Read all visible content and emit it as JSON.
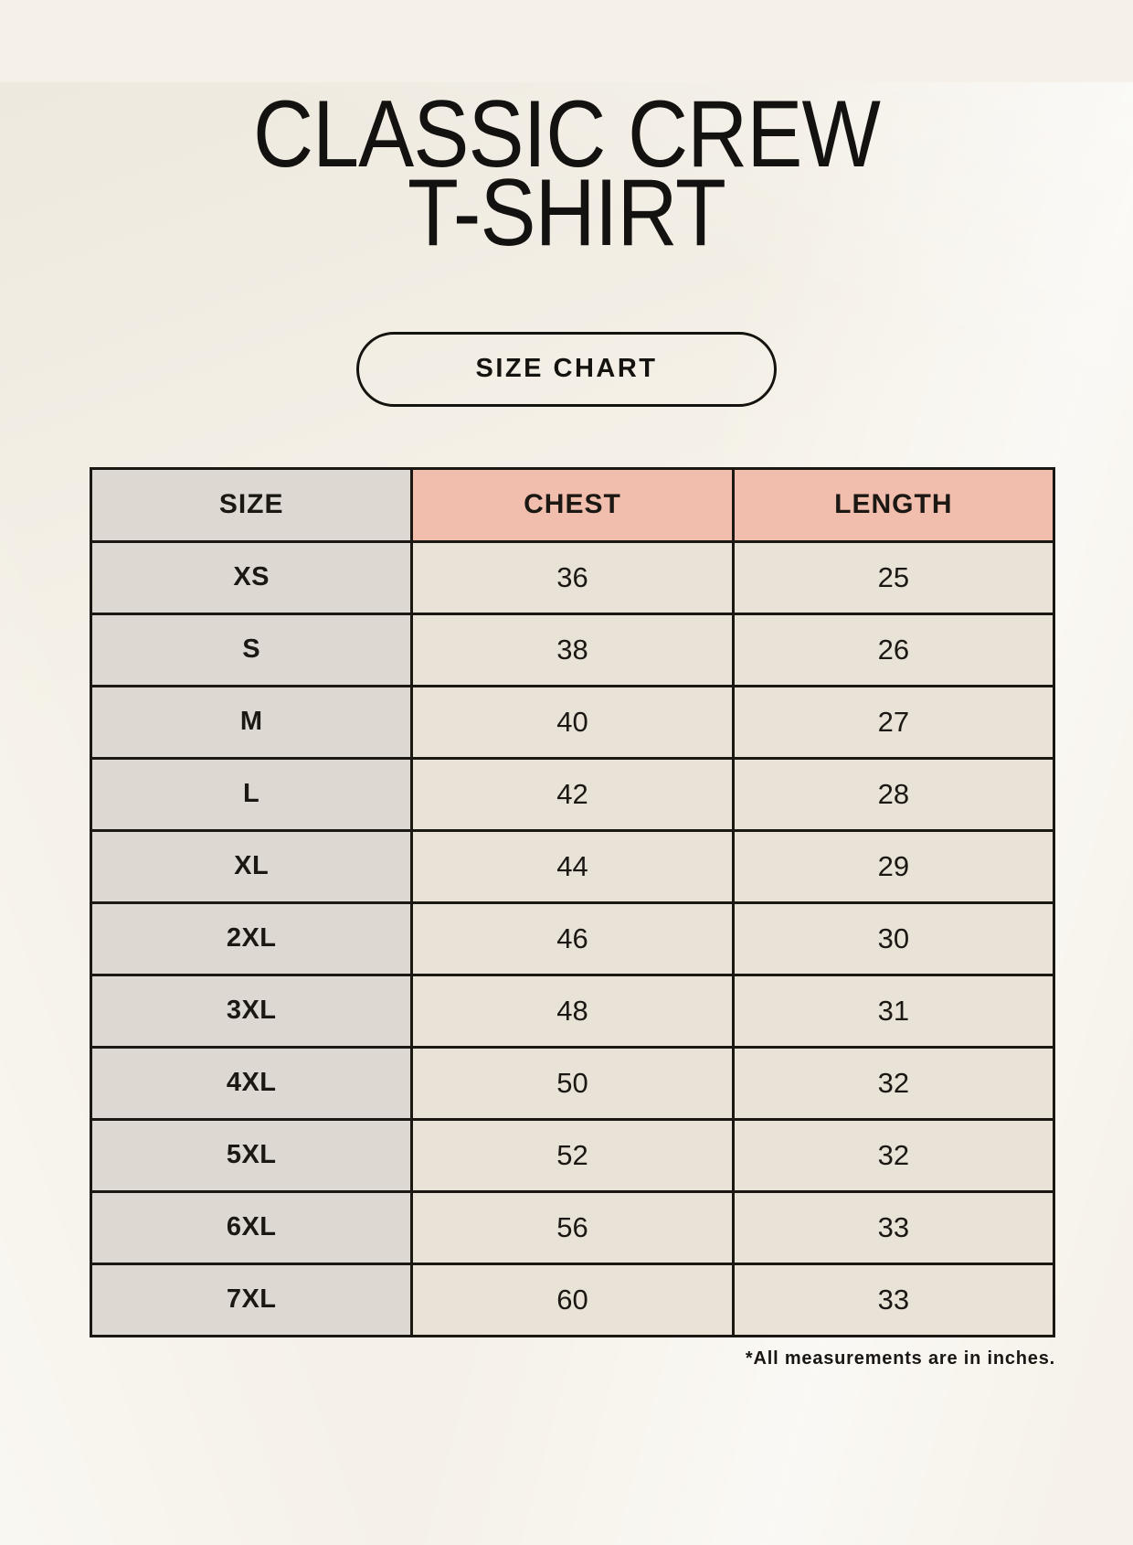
{
  "colors": {
    "background": "#f5f1e8",
    "accent_header": "#f1bdad",
    "size_col": "#ded8d2",
    "cell": "#e9e2d7",
    "border": "#1b1814",
    "text": "#1b1814"
  },
  "header": {
    "title_line1": "CLASSIC CREW",
    "title_line2": "T-SHIRT"
  },
  "size_chart_button": {
    "label": "SIZE CHART"
  },
  "table": {
    "columns": [
      "SIZE",
      "CHEST",
      "LENGTH"
    ],
    "rows": [
      {
        "size": "XS",
        "chest": "36",
        "length": "25"
      },
      {
        "size": "S",
        "chest": "38",
        "length": "26"
      },
      {
        "size": "M",
        "chest": "40",
        "length": "27"
      },
      {
        "size": "L",
        "chest": "42",
        "length": "28"
      },
      {
        "size": "XL",
        "chest": "44",
        "length": "29"
      },
      {
        "size": "2XL",
        "chest": "46",
        "length": "30"
      },
      {
        "size": "3XL",
        "chest": "48",
        "length": "31"
      },
      {
        "size": "4XL",
        "chest": "50",
        "length": "32"
      },
      {
        "size": "5XL",
        "chest": "52",
        "length": "32"
      },
      {
        "size": "6XL",
        "chest": "56",
        "length": "33"
      },
      {
        "size": "7XL",
        "chest": "60",
        "length": "33"
      }
    ]
  },
  "footnote": {
    "text": "*All measurements are in inches."
  }
}
